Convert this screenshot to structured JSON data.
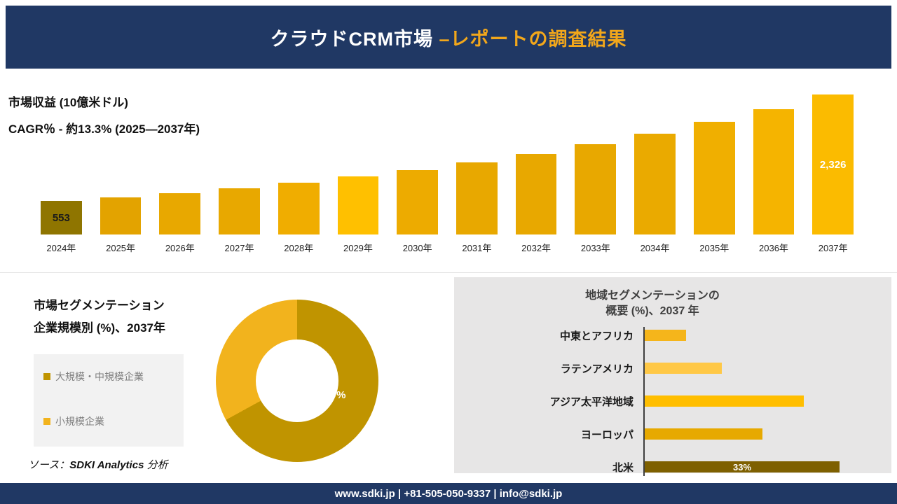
{
  "theme": {
    "navy": "#203864",
    "gold": "#F2A71B",
    "panel-gray": "#E7E6E6"
  },
  "header": {
    "title_main": "クラウドCRM市場 ",
    "title_accent": "–レポートの調査結果"
  },
  "revenue": {
    "label_line1": "市場収益 (10億米ドル)",
    "label_line2": "CAGR％ - 約13.3% (2025―2037年)"
  },
  "segmentation": {
    "title_line1": "市場セグメンテーション",
    "title_line2": "企業規模別 (%)、2037年"
  },
  "region": {
    "title_line1": "地域セグメンテーションの",
    "title_line2": "概要 (%)、2037 年"
  },
  "source": {
    "prefix": "ソース：",
    "brand": "SDKI Analytics",
    "suffix": " 分析"
  },
  "footer": {
    "site": "www.sdki.jp",
    "sep": " | ",
    "phone": "+81-505-050-9337",
    "email": "info@sdki.jp"
  },
  "chart_data": [
    {
      "type": "bar",
      "title": "市場収益 (10億米ドル)",
      "subtitle": "CAGR％ - 約13.3% (2025―2037年)",
      "categories": [
        "2024年",
        "2025年",
        "2026年",
        "2027年",
        "2028年",
        "2029年",
        "2030年",
        "2031年",
        "2032年",
        "2033年",
        "2034年",
        "2035年",
        "2036年",
        "2037年"
      ],
      "values": [
        553,
        618,
        690,
        771,
        861,
        962,
        1074,
        1200,
        1340,
        1497,
        1672,
        1868,
        2086,
        2326
      ],
      "colors": [
        "#8F7500",
        "#E3A300",
        "#E8A800",
        "#E8A800",
        "#F0AD00",
        "#FFC000",
        "#EDAB00",
        "#E8A800",
        "#E8A800",
        "#E8A800",
        "#EAAA00",
        "#F0AF00",
        "#F5B400",
        "#FBBB00"
      ],
      "point_labels": [
        {
          "index": 0,
          "text": "553",
          "color": "#1a1a1a"
        },
        {
          "index": 13,
          "text": "2,326",
          "color": "#ffffff"
        }
      ],
      "ylim": [
        0,
        2326
      ],
      "legend_position": "none",
      "grid": false
    },
    {
      "type": "pie",
      "donut": true,
      "title": "市場セグメンテーション 企業規模別 (%)、2037年",
      "labels": [
        "大規模・中規模企業",
        "小規模企業"
      ],
      "values": [
        67,
        33
      ],
      "colors": [
        "#C09400",
        "#F2B31D"
      ],
      "shown_label": "67%",
      "legend_position": "left"
    },
    {
      "type": "bar",
      "orientation": "horizontal",
      "title": "地域セグメンテーションの 概要 (%)、2037 年",
      "categories": [
        "中東とアフリカ",
        "ラテンアメリカ",
        "アジア太平洋地域",
        "ヨーロッパ",
        "北米"
      ],
      "values": [
        7,
        13,
        27,
        20,
        33
      ],
      "colors": [
        "#F5B51B",
        "#FFC846",
        "#FFBE00",
        "#E7A900",
        "#7E6000"
      ],
      "point_labels": [
        {
          "index": 4,
          "text": "33%",
          "color": "#ffffff"
        }
      ],
      "xlim": [
        0,
        33
      ],
      "grid": false
    }
  ]
}
